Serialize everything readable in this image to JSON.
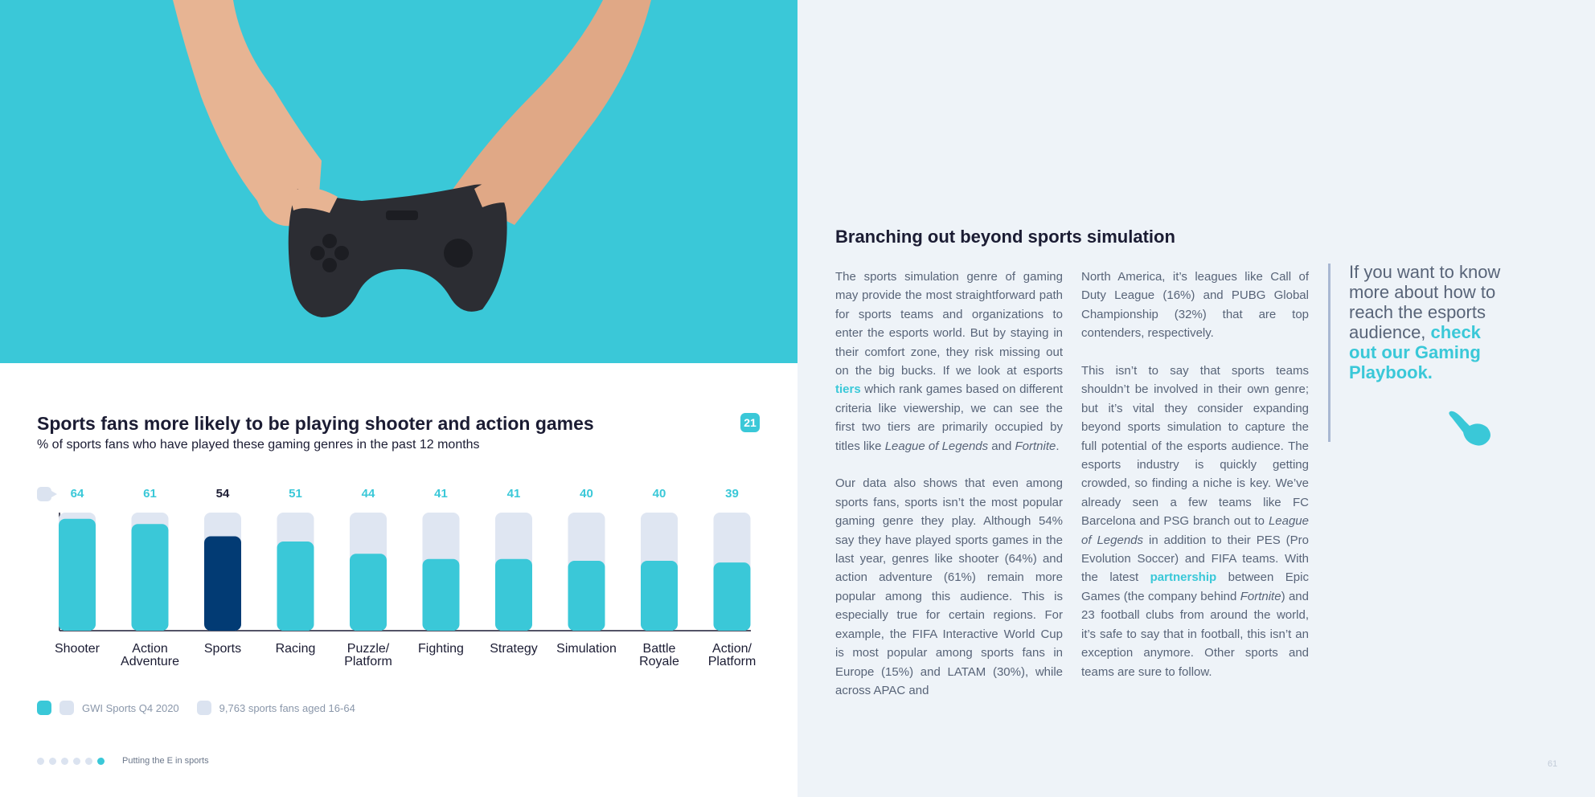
{
  "chart": {
    "title": "Sports fans more likely to be playing shooter and action games",
    "subtitle": "% of sports fans who have played these gaming genres in the past 12 months",
    "page_badge": "21",
    "legend": {
      "source": "GWI Sports Q4 2020",
      "base": "9,763 sports fans aged 16-64"
    },
    "colors": {
      "accent": "#3ac8d8",
      "highlight": "#023b74",
      "track": "#dfe6f2",
      "label_accent": "#3ac8d8",
      "label_highlight": "#1b1c33"
    }
  },
  "chart_data": {
    "type": "bar",
    "categories": [
      "Shooter",
      "Action Adventure",
      "Sports",
      "Racing",
      "Puzzle/ Platform",
      "Fighting",
      "Strategy",
      "Simulation",
      "Battle Royale",
      "Action/ Platform"
    ],
    "category_lines": [
      [
        "Shooter"
      ],
      [
        "Action",
        "Adventure"
      ],
      [
        "Sports"
      ],
      [
        "Racing"
      ],
      [
        "Puzzle/",
        "Platform"
      ],
      [
        "Fighting"
      ],
      [
        "Strategy"
      ],
      [
        "Simulation"
      ],
      [
        "Battle",
        "Royale"
      ],
      [
        "Action/",
        "Platform"
      ]
    ],
    "values": [
      64,
      61,
      54,
      51,
      44,
      41,
      41,
      40,
      40,
      39
    ],
    "highlight_index": 2,
    "ylim": [
      0,
      100
    ]
  },
  "footer": {
    "text": "Putting the E in sports",
    "page_number": "61"
  },
  "article": {
    "title": "Branching out beyond sports simulation",
    "col1": {
      "p1_a": "The sports simulation genre of gaming may provide the most straightforward path for sports teams and organizations to enter the esports world. But by staying in their comfort zone, they risk missing out on the big bucks. If we look at esports ",
      "p1_link": "tiers",
      "p1_b": " which rank games based on different criteria like viewership, we can see the first two tiers are primarily occupied by titles like ",
      "p1_i1": "League of Legends",
      "p1_c": " and ",
      "p1_i2": "Fortnite",
      "p1_d": ".",
      "p2": "Our data also shows that even among sports fans, sports isn’t the most popular gaming genre they play. Although 54% say they have played sports games in the last year, genres like shooter (64%) and action adventure (61%) remain more popular among this audience. This is especially true for certain regions. For example, the FIFA Interactive World Cup is most popular among sports fans in Europe (15%) and LATAM (30%), while across APAC and"
    },
    "col2": {
      "p1": "North America, it’s leagues like Call of Duty League (16%) and PUBG Global Championship (32%) that are top contenders, respectively.",
      "p2_a": "This isn’t to say that sports teams shouldn’t be involved in their own genre; but it’s vital they consider expanding beyond sports simulation to capture the full potential of the esports audience. The esports industry is quickly getting crowded, so finding a niche is key. We’ve already seen a few teams like FC Barcelona and PSG branch out to ",
      "p2_i1": "League of Legends",
      "p2_b": " in addition to their PES (Pro Evolution Soccer) and FIFA teams. With the latest ",
      "p2_link": "partnership",
      "p2_c": " between Epic Games (the company behind ",
      "p2_i2": "Fortnite",
      "p2_d": ") and 23 football clubs from around the world, it’s safe to say that in football, this isn’t an exception anymore. Other sports and teams are sure to follow."
    },
    "cta": {
      "text": "If you want to know more about how to reach the esports audience, ",
      "link": "check out our Gaming Playbook."
    }
  }
}
